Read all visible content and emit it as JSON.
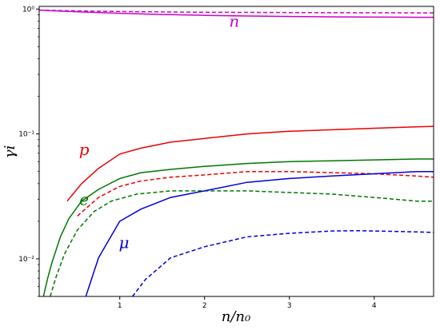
{
  "chart_data": {
    "type": "line",
    "title": "",
    "xlabel": "n/n₀",
    "ylabel": "γi",
    "xlim": [
      0.05,
      4.7
    ],
    "ylim": [
      0.005,
      1.05
    ],
    "yscale": "log",
    "grid": false,
    "x_ticks": [
      {
        "value": 1,
        "label": "1"
      },
      {
        "value": 2,
        "label": "2"
      },
      {
        "value": 3,
        "label": "3"
      },
      {
        "value": 4,
        "label": "4"
      }
    ],
    "y_ticks": [
      {
        "value": 0.01,
        "label": "10⁻²"
      },
      {
        "value": 0.1,
        "label": "10⁻¹"
      },
      {
        "value": 1,
        "label": "10⁰"
      }
    ],
    "series": [
      {
        "name": "n",
        "color": "#cc00cc",
        "style": "solid",
        "x": [
          0.05,
          0.5,
          1.0,
          1.5,
          2.0,
          2.5,
          3.0,
          3.5,
          4.0,
          4.5,
          4.7
        ],
        "y": [
          0.98,
          0.95,
          0.925,
          0.905,
          0.89,
          0.88,
          0.872,
          0.866,
          0.862,
          0.86,
          0.86
        ]
      },
      {
        "name": "",
        "color": "#cc00cc",
        "style": "dashed",
        "x": [
          0.05,
          0.5,
          1.0,
          1.5,
          2.0,
          2.5,
          3.0,
          3.5,
          4.0,
          4.5,
          4.7
        ],
        "y": [
          0.98,
          0.965,
          0.955,
          0.948,
          0.943,
          0.94,
          0.937,
          0.935,
          0.933,
          0.932,
          0.932
        ]
      },
      {
        "name": "p",
        "color": "#ee0000",
        "style": "solid",
        "x": [
          0.38,
          0.55,
          0.75,
          1.0,
          1.25,
          1.6,
          2.0,
          2.5,
          3.0,
          3.5,
          4.0,
          4.5,
          4.7
        ],
        "y": [
          0.029,
          0.04,
          0.053,
          0.069,
          0.077,
          0.086,
          0.092,
          0.1,
          0.105,
          0.108,
          0.111,
          0.114,
          0.115
        ]
      },
      {
        "name": "",
        "color": "#ee0000",
        "style": "dashed",
        "x": [
          0.5,
          0.75,
          1.0,
          1.25,
          1.6,
          2.0,
          2.5,
          3.0,
          3.5,
          4.0,
          4.5,
          4.7
        ],
        "y": [
          0.022,
          0.031,
          0.038,
          0.042,
          0.045,
          0.047,
          0.05,
          0.05,
          0.049,
          0.048,
          0.046,
          0.045
        ]
      },
      {
        "name": "e",
        "color": "#007700",
        "style": "solid",
        "x": [
          0.1,
          0.15,
          0.2,
          0.3,
          0.4,
          0.55,
          0.75,
          1.0,
          1.25,
          1.6,
          2.0,
          2.5,
          3.0,
          3.5,
          4.0,
          4.5,
          4.7
        ],
        "y": [
          0.005,
          0.007,
          0.0093,
          0.015,
          0.021,
          0.029,
          0.036,
          0.044,
          0.049,
          0.052,
          0.055,
          0.058,
          0.06,
          0.061,
          0.062,
          0.063,
          0.063
        ]
      },
      {
        "name": "",
        "color": "#007700",
        "style": "dashed",
        "x": [
          0.18,
          0.25,
          0.35,
          0.5,
          0.7,
          0.9,
          1.2,
          1.6,
          2.0,
          2.5,
          3.0,
          3.5,
          4.0,
          4.5,
          4.7
        ],
        "y": [
          0.005,
          0.0072,
          0.011,
          0.017,
          0.024,
          0.029,
          0.033,
          0.035,
          0.035,
          0.035,
          0.034,
          0.033,
          0.031,
          0.029,
          0.029
        ]
      },
      {
        "name": "μ",
        "color": "#0000dd",
        "style": "solid",
        "x": [
          0.6,
          0.75,
          1.0,
          1.25,
          1.6,
          2.0,
          2.5,
          3.0,
          3.5,
          4.0,
          4.5,
          4.7
        ],
        "y": [
          0.005,
          0.0102,
          0.02,
          0.025,
          0.031,
          0.035,
          0.041,
          0.044,
          0.046,
          0.048,
          0.05,
          0.05
        ]
      },
      {
        "name": "",
        "color": "#0000dd",
        "style": "dashed",
        "x": [
          1.15,
          1.3,
          1.6,
          2.0,
          2.5,
          3.0,
          3.5,
          3.8,
          4.2,
          4.7
        ],
        "y": [
          0.005,
          0.0068,
          0.0102,
          0.0125,
          0.015,
          0.016,
          0.0167,
          0.0168,
          0.0166,
          0.0163
        ]
      }
    ],
    "annotations": [
      {
        "text": "n",
        "x": 2.35,
        "y": 0.72,
        "color": "#cc00cc"
      },
      {
        "text": "p",
        "x": 0.58,
        "y": 0.068,
        "color": "#ee0000"
      },
      {
        "text": "e",
        "x": 0.58,
        "y": 0.027,
        "color": "#007700"
      },
      {
        "text": "μ",
        "x": 1.05,
        "y": 0.0122,
        "color": "#0000dd"
      }
    ]
  }
}
